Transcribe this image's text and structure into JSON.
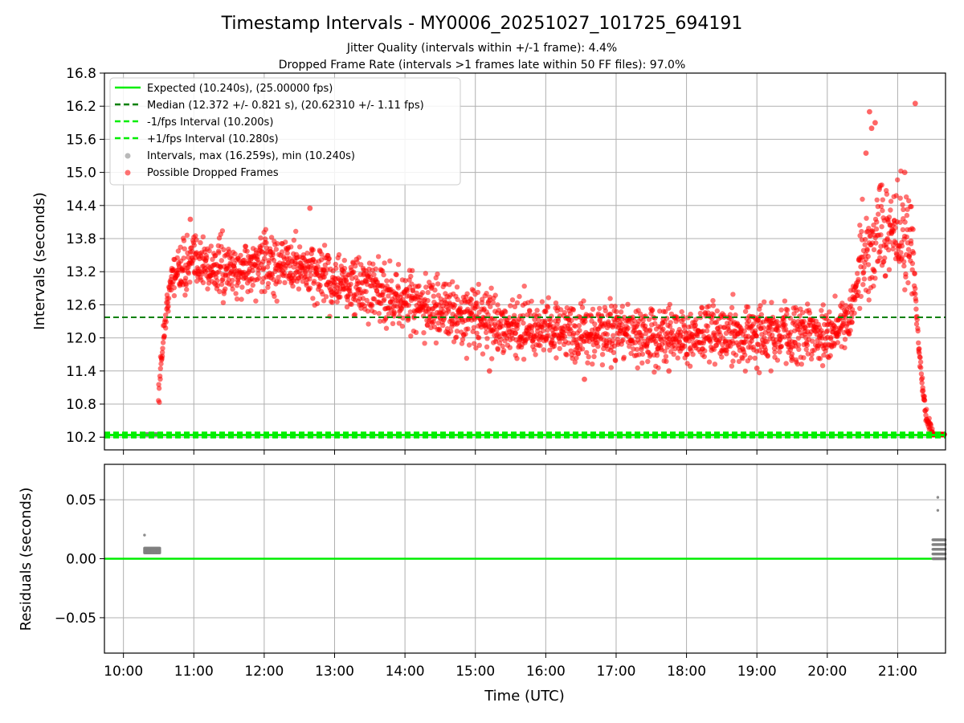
{
  "figure": {
    "title": "Timestamp Intervals - MY0006_20251027_101725_694191",
    "subtitle_1": "Jitter Quality (intervals within +/-1 frame): 4.4%",
    "subtitle_2": "Dropped Frame Rate (intervals >1 frames late within 50 FF files): 97.0%",
    "xlabel": "Time (UTC)"
  },
  "colors": {
    "expected": "#00ee00",
    "median": "#008000",
    "dropped": "#ff0000",
    "intervals": "#808080",
    "grid": "#b0b0b0"
  },
  "chart_data": [
    {
      "type": "scatter",
      "ylabel": "Intervals (seconds)",
      "ylim": [
        9.97,
        16.8
      ],
      "xlim_hours": [
        9.73,
        21.68
      ],
      "x_unit": "hours UTC",
      "yticks": [
        10.2,
        10.8,
        11.4,
        12.0,
        12.6,
        13.2,
        13.8,
        14.4,
        15.0,
        15.6,
        16.2,
        16.8
      ],
      "ytick_labels": [
        "10.2",
        "10.8",
        "11.4",
        "12.0",
        "12.6",
        "13.2",
        "13.8",
        "14.4",
        "15.0",
        "15.6",
        "16.2",
        "16.8"
      ],
      "grid": true,
      "legend_position": "top-left",
      "lines": [
        {
          "name": "Expected (10.240s), (25.00000 fps)",
          "y": 10.24,
          "style": "solid",
          "color": "#00ee00"
        },
        {
          "name": "Median (12.372 +/- 0.821 s), (20.62310 +/- 1.11 fps)",
          "y": 12.372,
          "style": "dashed",
          "color": "#008000"
        },
        {
          "name": "-1/fps Interval (10.200s)",
          "y": 10.2,
          "style": "dashed",
          "color": "#00ee00"
        },
        {
          "name": "+1/fps Interval (10.280s)",
          "y": 10.28,
          "style": "dashed",
          "color": "#00ee00"
        }
      ],
      "scatter_series": [
        {
          "name": "Intervals, max (16.259s), min (10.240s)",
          "color": "#808080"
        },
        {
          "name": "Possible Dropped Frames",
          "color": "#ff0000"
        }
      ],
      "dropped_frames_trend": {
        "x": [
          10.5,
          10.55,
          10.6,
          10.7,
          11.0,
          11.5,
          12.0,
          12.5,
          13.0,
          13.5,
          14.0,
          14.5,
          15.0,
          15.5,
          16.0,
          16.5,
          17.0,
          17.5,
          18.0,
          18.5,
          19.0,
          19.5,
          20.0,
          20.3,
          20.5,
          20.8,
          21.0,
          21.2,
          21.3,
          21.4,
          21.5
        ],
        "y": [
          10.9,
          11.8,
          12.4,
          13.2,
          13.4,
          13.2,
          13.35,
          13.3,
          13.0,
          12.85,
          12.7,
          12.5,
          12.35,
          12.2,
          12.15,
          12.1,
          12.1,
          12.05,
          12.0,
          12.05,
          12.1,
          12.1,
          12.1,
          12.2,
          13.5,
          13.9,
          13.9,
          13.8,
          11.8,
          10.6,
          10.24
        ],
        "spread": 0.36
      },
      "dropped_frames_extremes": [
        {
          "x": 20.6,
          "y": 16.1
        },
        {
          "x": 20.63,
          "y": 15.8
        },
        {
          "x": 20.68,
          "y": 15.9
        },
        {
          "x": 21.25,
          "y": 16.25
        },
        {
          "x": 20.55,
          "y": 15.35
        },
        {
          "x": 21.1,
          "y": 15.0
        },
        {
          "x": 12.65,
          "y": 14.35
        },
        {
          "x": 10.95,
          "y": 14.15
        },
        {
          "x": 15.2,
          "y": 11.4
        },
        {
          "x": 16.55,
          "y": 11.25
        },
        {
          "x": 17.75,
          "y": 11.4
        },
        {
          "x": 19.0,
          "y": 11.45
        }
      ],
      "interval_clusters": [
        {
          "x_range": [
            10.28,
            10.5
          ],
          "y": 10.25
        },
        {
          "x_range": [
            21.5,
            21.68
          ],
          "y": 10.25
        }
      ],
      "xticks": [
        10,
        11,
        12,
        13,
        14,
        15,
        16,
        17,
        18,
        19,
        20,
        21
      ],
      "xtick_labels": [
        "10:00",
        "11:00",
        "12:00",
        "13:00",
        "14:00",
        "15:00",
        "16:00",
        "17:00",
        "18:00",
        "19:00",
        "20:00",
        "21:00"
      ]
    },
    {
      "type": "scatter",
      "ylabel": "Residuals (seconds)",
      "ylim": [
        -0.08,
        0.08
      ],
      "xlim_hours": [
        9.73,
        21.68
      ],
      "yticks": [
        0.05,
        0.0,
        -0.05
      ],
      "ytick_labels": [
        "0.05",
        "0.00",
        "−0.05"
      ],
      "grid": true,
      "zero_line_color": "#00ee00",
      "residual_clusters": [
        {
          "x_range": [
            10.3,
            10.52
          ],
          "values": [
            0.008,
            0.007,
            0.009,
            0.006,
            0.005
          ]
        },
        {
          "x_range": [
            21.5,
            21.68
          ],
          "values": [
            0.016,
            0.012,
            0.008,
            0.004,
            0.0
          ]
        }
      ],
      "residual_outliers": [
        {
          "x": 10.3,
          "y": 0.02
        },
        {
          "x": 21.57,
          "y": 0.052
        },
        {
          "x": 21.57,
          "y": 0.041
        }
      ],
      "xticks": [
        10,
        11,
        12,
        13,
        14,
        15,
        16,
        17,
        18,
        19,
        20,
        21
      ],
      "xtick_labels": [
        "10:00",
        "11:00",
        "12:00",
        "13:00",
        "14:00",
        "15:00",
        "16:00",
        "17:00",
        "18:00",
        "19:00",
        "20:00",
        "21:00"
      ]
    }
  ]
}
